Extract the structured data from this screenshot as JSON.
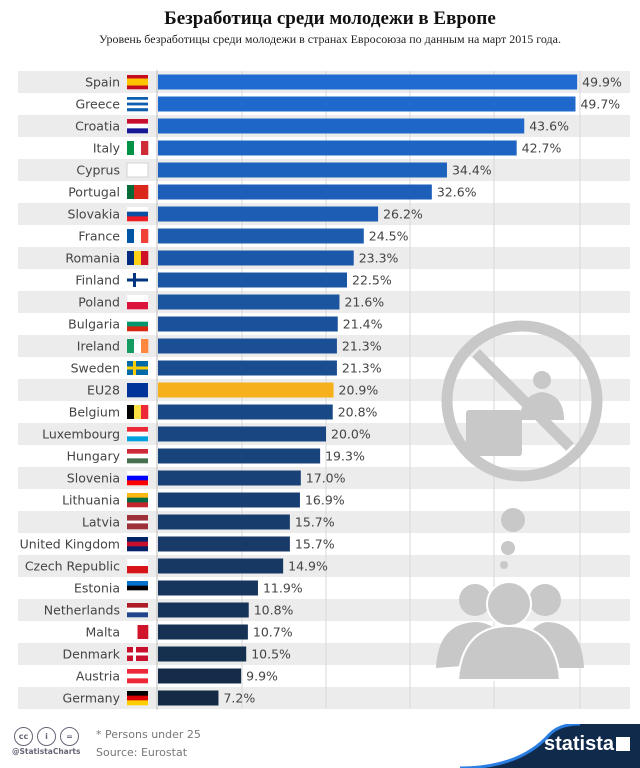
{
  "title": "Безработица среди молодежи в Европе",
  "subtitle": "Уровень безработицы среди молодежи в странах Евросоюза по данным на март 2015 года.",
  "footer": {
    "note": "* Persons under 25",
    "source": "Source: Eurostat",
    "handle": "@StatistaCharts",
    "brand": "statista",
    "license_icons": [
      "cc-icon",
      "attribution-icon",
      "no-derivatives-icon"
    ],
    "license_glyphs": [
      "cc",
      "i",
      "="
    ]
  },
  "colors": {
    "bar_top": "#1f6bd1",
    "bar_bottom": "#142a45",
    "highlight": "#f5b01c",
    "row_alt": "#ececec",
    "grid": "#d8d8d8",
    "brand_bg": "#102a4c"
  },
  "chart_data": {
    "type": "bar",
    "orientation": "horizontal",
    "title": "Безработица среди молодежи в Европе",
    "subtitle": "Уровень безработицы среди молодежи в странах Евросоюза по данным на март 2015 года.",
    "xlabel": "",
    "ylabel": "",
    "unit": "%",
    "xlim": [
      0,
      50
    ],
    "grid": true,
    "highlight_category": "EU28",
    "categories": [
      "Spain",
      "Greece",
      "Croatia",
      "Italy",
      "Cyprus",
      "Portugal",
      "Slovakia",
      "France",
      "Romania",
      "Finland",
      "Poland",
      "Bulgaria",
      "Ireland",
      "Sweden",
      "EU28",
      "Belgium",
      "Luxembourg",
      "Hungary",
      "Slovenia",
      "Lithuania",
      "Latvia",
      "United Kingdom",
      "Czech Republic",
      "Estonia",
      "Netherlands",
      "Malta",
      "Denmark",
      "Austria",
      "Germany"
    ],
    "values": [
      49.9,
      49.7,
      43.6,
      42.7,
      34.4,
      32.6,
      26.2,
      24.5,
      23.3,
      22.5,
      21.6,
      21.4,
      21.3,
      21.3,
      20.9,
      20.8,
      20.0,
      19.3,
      17.0,
      16.9,
      15.7,
      15.7,
      14.9,
      11.9,
      10.8,
      10.7,
      10.5,
      9.9,
      7.2
    ],
    "labels": [
      "49.9%",
      "49.7%",
      "43.6%",
      "42.7%",
      "34.4%",
      "32.6%",
      "26.2%",
      "24.5%",
      "23.3%",
      "22.5%",
      "21.6%",
      "21.4%",
      "21.3%",
      "21.3%",
      "20.9%",
      "20.8%",
      "20.0%",
      "19.3%",
      "17.0%",
      "16.9%",
      "15.7%",
      "15.7%",
      "14.9%",
      "11.9%",
      "10.8%",
      "10.7%",
      "10.5%",
      "9.9%",
      "7.2%"
    ],
    "flags": [
      {
        "type": "h",
        "colors": [
          "#c60b1e",
          "#ffc400",
          "#ffc400",
          "#c60b1e"
        ]
      },
      {
        "type": "h",
        "colors": [
          "#0d5eaf",
          "#ffffff",
          "#0d5eaf",
          "#ffffff",
          "#0d5eaf"
        ]
      },
      {
        "type": "h",
        "colors": [
          "#c8102e",
          "#ffffff",
          "#171796"
        ]
      },
      {
        "type": "v",
        "colors": [
          "#009246",
          "#ffffff",
          "#ce2b37"
        ]
      },
      {
        "type": "h",
        "colors": [
          "#ffffff"
        ]
      },
      {
        "type": "v",
        "colors": [
          "#046a38",
          "#da291c",
          "#da291c"
        ]
      },
      {
        "type": "h",
        "colors": [
          "#ffffff",
          "#0b4ea2",
          "#ee1c25"
        ]
      },
      {
        "type": "v",
        "colors": [
          "#0055a4",
          "#ffffff",
          "#ef4135"
        ]
      },
      {
        "type": "v",
        "colors": [
          "#002b7f",
          "#fcd116",
          "#ce1126"
        ]
      },
      {
        "type": "cross",
        "colors": [
          "#ffffff",
          "#003580"
        ]
      },
      {
        "type": "h",
        "colors": [
          "#ffffff",
          "#dc143c"
        ]
      },
      {
        "type": "h",
        "colors": [
          "#ffffff",
          "#00966e",
          "#d62612"
        ]
      },
      {
        "type": "v",
        "colors": [
          "#169b62",
          "#ffffff",
          "#ff883e"
        ]
      },
      {
        "type": "cross",
        "colors": [
          "#006aa7",
          "#fecc00"
        ]
      },
      {
        "type": "h",
        "colors": [
          "#003399"
        ]
      },
      {
        "type": "v",
        "colors": [
          "#000000",
          "#fae042",
          "#ed2939"
        ]
      },
      {
        "type": "h",
        "colors": [
          "#ed2939",
          "#ffffff",
          "#00a1de"
        ]
      },
      {
        "type": "h",
        "colors": [
          "#ce2939",
          "#ffffff",
          "#477050"
        ]
      },
      {
        "type": "h",
        "colors": [
          "#ffffff",
          "#0000ff",
          "#ff0000"
        ]
      },
      {
        "type": "h",
        "colors": [
          "#fdb913",
          "#006a44",
          "#c1272d"
        ]
      },
      {
        "type": "h",
        "colors": [
          "#9e3039",
          "#9e3039",
          "#ffffff",
          "#9e3039",
          "#9e3039"
        ]
      },
      {
        "type": "h",
        "colors": [
          "#012169",
          "#c8102e",
          "#012169"
        ]
      },
      {
        "type": "h",
        "colors": [
          "#ffffff",
          "#d7141a"
        ]
      },
      {
        "type": "h",
        "colors": [
          "#0072ce",
          "#000000",
          "#ffffff"
        ]
      },
      {
        "type": "h",
        "colors": [
          "#ae1c28",
          "#ffffff",
          "#21468b"
        ]
      },
      {
        "type": "v",
        "colors": [
          "#ffffff",
          "#cf142b"
        ]
      },
      {
        "type": "cross",
        "colors": [
          "#c8102e",
          "#ffffff"
        ]
      },
      {
        "type": "h",
        "colors": [
          "#ed2939",
          "#ffffff",
          "#ed2939"
        ]
      },
      {
        "type": "h",
        "colors": [
          "#000000",
          "#dd0000",
          "#ffce00"
        ]
      }
    ]
  }
}
